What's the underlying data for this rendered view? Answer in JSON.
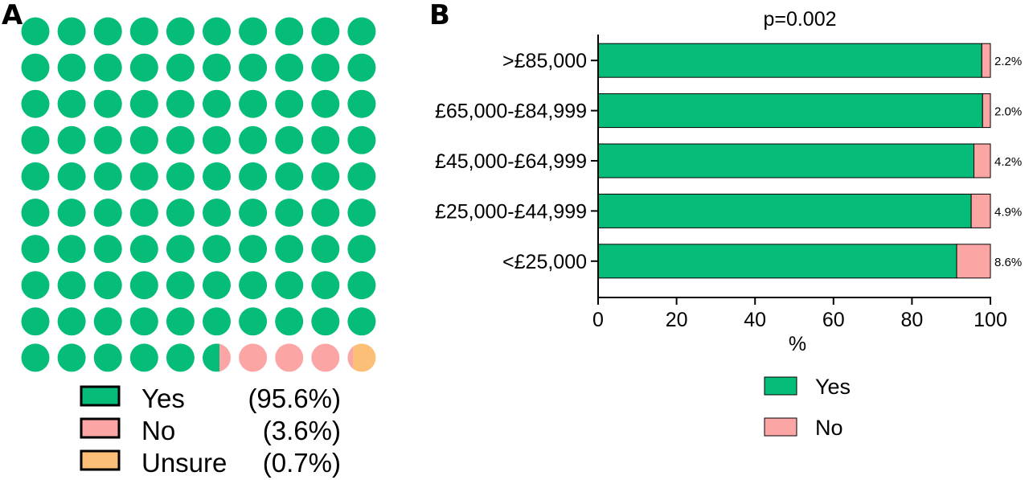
{
  "panels": {
    "a_label": "A",
    "b_label": "B"
  },
  "colors": {
    "yes": "#05bd78",
    "no": "#fca5a5",
    "unsure": "#fbbf77",
    "axis": "#000000"
  },
  "chart_data": [
    {
      "type": "waffle",
      "grid": {
        "rows": 10,
        "cols": 10
      },
      "categories": [
        "Yes",
        "No",
        "Unsure"
      ],
      "values": [
        95.6,
        3.6,
        0.7
      ],
      "legend": [
        {
          "label": "Yes",
          "pct": "(95.6%)"
        },
        {
          "label": "No",
          "pct": "(3.6%)"
        },
        {
          "label": "Unsure",
          "pct": "(0.7%)"
        }
      ]
    },
    {
      "type": "bar",
      "orientation": "horizontal",
      "stacked": true,
      "title": "p=0.002",
      "xlabel": "%",
      "xlim": [
        0,
        100
      ],
      "xticks": [
        0,
        20,
        40,
        60,
        80,
        100
      ],
      "categories": [
        ">£85,000",
        "£65,000-£84,999",
        "£45,000-£64,999",
        "£25,000-£44,999",
        "<£25,000"
      ],
      "series": [
        {
          "name": "Yes",
          "values": [
            97.8,
            98.0,
            95.8,
            95.1,
            91.4
          ]
        },
        {
          "name": "No",
          "values": [
            2.2,
            2.0,
            4.2,
            4.9,
            8.6
          ]
        }
      ],
      "data_labels": [
        "2.2%",
        "2.0%",
        "4.2%",
        "4.9%",
        "8.6%"
      ],
      "legend_position": "bottom"
    }
  ]
}
